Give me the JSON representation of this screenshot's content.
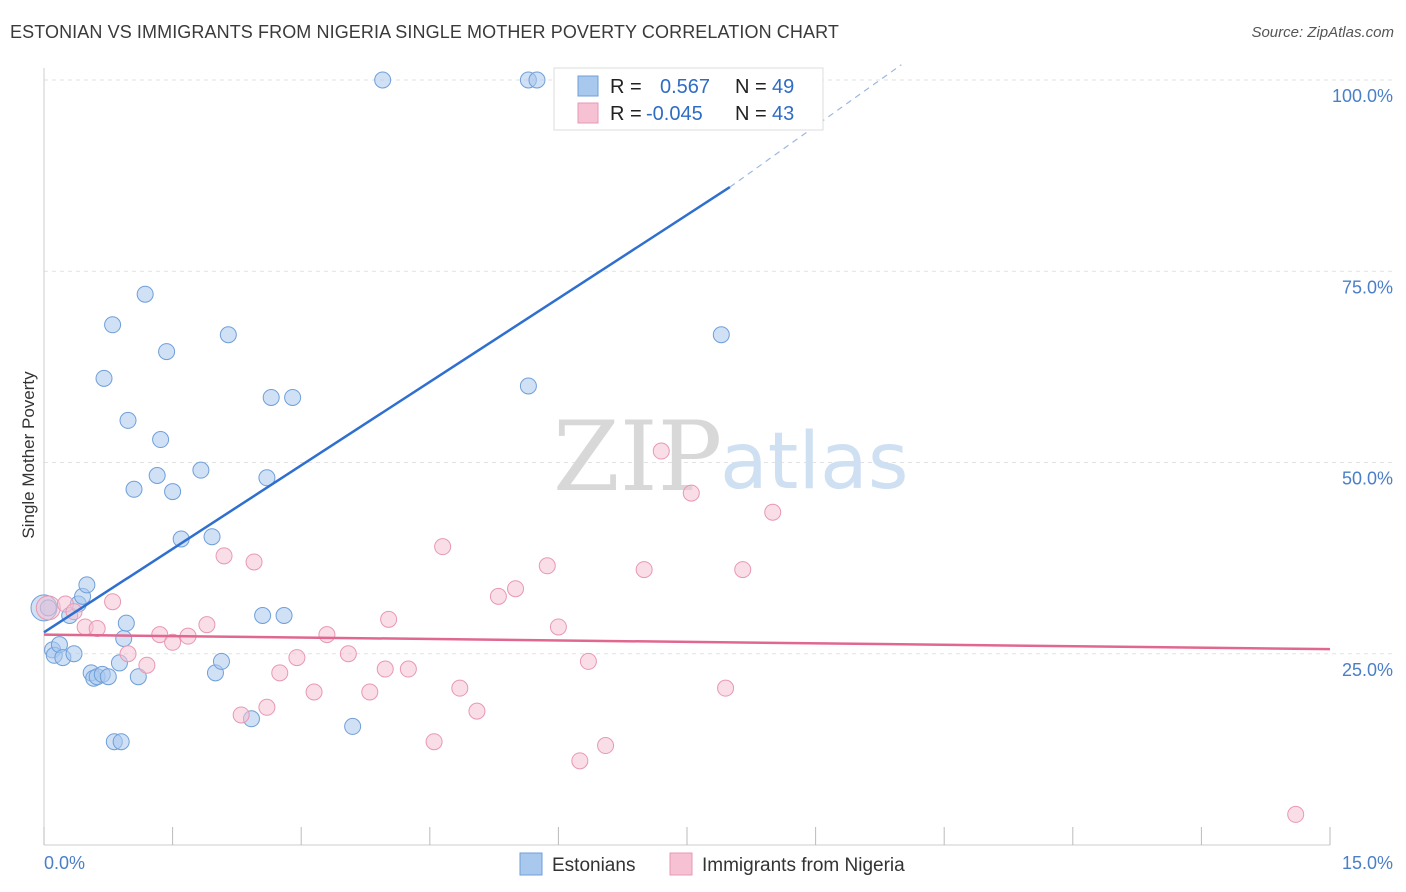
{
  "title": "ESTONIAN VS IMMIGRANTS FROM NIGERIA SINGLE MOTHER POVERTY CORRELATION CHART",
  "source": "Source: ZipAtlas.com",
  "watermark": {
    "zip": "ZIP",
    "atlas": "atlas"
  },
  "colors": {
    "blue_fill": "#a9c8ee",
    "blue_stroke": "#6f9fd8",
    "blue_line": "#2f6fcf",
    "pink_fill": "#f6c2d3",
    "pink_stroke": "#e898b3",
    "pink_line": "#e0688f",
    "grid": "#e2e2e2",
    "tick_label": "#4a7fc8"
  },
  "legend": {
    "rows": [
      {
        "r_label": "R =",
        "r_value": "0.567",
        "n_label": "N =",
        "n_value": "49"
      },
      {
        "r_label": "R =",
        "r_value": "-0.045",
        "n_label": "N =",
        "n_value": "43"
      }
    ]
  },
  "bottom_legend": [
    "Estonians",
    "Immigrants from Nigeria"
  ],
  "chart_data": {
    "type": "scatter",
    "title": "ESTONIAN VS IMMIGRANTS FROM NIGERIA SINGLE MOTHER POVERTY CORRELATION CHART",
    "xlabel": "",
    "ylabel": "Single Mother Poverty",
    "xlim": [
      0,
      15
    ],
    "ylim": [
      0,
      102
    ],
    "x_tick_labels": [
      "0.0%",
      "15.0%"
    ],
    "y_ticks": [
      25,
      50,
      75,
      100
    ],
    "y_tick_labels": [
      "25.0%",
      "50.0%",
      "75.0%",
      "100.0%"
    ],
    "grid": true,
    "legend_position": "top-center",
    "series": [
      {
        "name": "Estonians",
        "r": 0.567,
        "n": 49,
        "points": [
          [
            0.0,
            31.0
          ],
          [
            0.1,
            25.5
          ],
          [
            0.12,
            24.8
          ],
          [
            0.18,
            26.2
          ],
          [
            0.22,
            24.5
          ],
          [
            0.3,
            30.0
          ],
          [
            0.35,
            25.0
          ],
          [
            0.4,
            31.5
          ],
          [
            0.45,
            32.5
          ],
          [
            0.5,
            34.0
          ],
          [
            0.55,
            22.5
          ],
          [
            0.58,
            21.8
          ],
          [
            0.62,
            22.0
          ],
          [
            0.68,
            22.3
          ],
          [
            0.7,
            61.0
          ],
          [
            0.75,
            22.0
          ],
          [
            0.8,
            68.0
          ],
          [
            0.82,
            13.5
          ],
          [
            0.88,
            23.8
          ],
          [
            0.9,
            13.5
          ],
          [
            0.93,
            27.0
          ],
          [
            0.96,
            29.0
          ],
          [
            0.98,
            55.5
          ],
          [
            1.05,
            46.5
          ],
          [
            1.1,
            22.0
          ],
          [
            1.18,
            72.0
          ],
          [
            1.32,
            48.3
          ],
          [
            1.36,
            53.0
          ],
          [
            1.43,
            64.5
          ],
          [
            1.5,
            46.2
          ],
          [
            1.6,
            40.0
          ],
          [
            1.83,
            49.0
          ],
          [
            1.96,
            40.3
          ],
          [
            2.0,
            22.5
          ],
          [
            2.07,
            24.0
          ],
          [
            2.15,
            66.7
          ],
          [
            2.42,
            16.5
          ],
          [
            2.55,
            30.0
          ],
          [
            2.6,
            48.0
          ],
          [
            2.65,
            58.5
          ],
          [
            2.8,
            30.0
          ],
          [
            2.9,
            58.5
          ],
          [
            3.6,
            15.5
          ],
          [
            3.95,
            100.0
          ],
          [
            5.65,
            100.0
          ],
          [
            5.75,
            100.0
          ],
          [
            5.65,
            60.0
          ],
          [
            7.9,
            66.7
          ],
          [
            0.05,
            31.0
          ]
        ],
        "trend": {
          "x0": 0.0,
          "y0": 27.8,
          "x1": 8.0,
          "y1": 86.0,
          "dashed_to": [
            10.0,
            102.0
          ]
        }
      },
      {
        "name": "Immigrants from Nigeria",
        "r": -0.045,
        "n": 43,
        "points": [
          [
            0.05,
            31.0
          ],
          [
            0.25,
            31.5
          ],
          [
            0.35,
            30.5
          ],
          [
            0.48,
            28.5
          ],
          [
            0.62,
            28.3
          ],
          [
            0.8,
            31.8
          ],
          [
            0.98,
            25.0
          ],
          [
            1.2,
            23.5
          ],
          [
            1.35,
            27.5
          ],
          [
            1.5,
            26.5
          ],
          [
            1.68,
            27.3
          ],
          [
            1.9,
            28.8
          ],
          [
            2.1,
            37.8
          ],
          [
            2.3,
            17.0
          ],
          [
            2.45,
            37.0
          ],
          [
            2.6,
            18.0
          ],
          [
            2.75,
            22.5
          ],
          [
            2.95,
            24.5
          ],
          [
            3.15,
            20.0
          ],
          [
            3.3,
            27.5
          ],
          [
            3.55,
            25.0
          ],
          [
            3.8,
            20.0
          ],
          [
            3.98,
            23.0
          ],
          [
            4.02,
            29.5
          ],
          [
            4.25,
            23.0
          ],
          [
            4.55,
            13.5
          ],
          [
            4.65,
            39.0
          ],
          [
            4.85,
            20.5
          ],
          [
            5.05,
            17.5
          ],
          [
            5.3,
            32.5
          ],
          [
            5.5,
            33.5
          ],
          [
            5.87,
            36.5
          ],
          [
            6.0,
            28.5
          ],
          [
            6.25,
            11.0
          ],
          [
            6.35,
            24.0
          ],
          [
            6.55,
            13.0
          ],
          [
            7.0,
            36.0
          ],
          [
            7.2,
            51.5
          ],
          [
            7.55,
            46.0
          ],
          [
            7.95,
            20.5
          ],
          [
            8.15,
            36.0
          ],
          [
            8.5,
            43.5
          ],
          [
            14.6,
            4.0
          ]
        ],
        "trend": {
          "x0": 0.0,
          "y0": 27.5,
          "x1": 15.0,
          "y1": 25.6
        }
      }
    ]
  }
}
